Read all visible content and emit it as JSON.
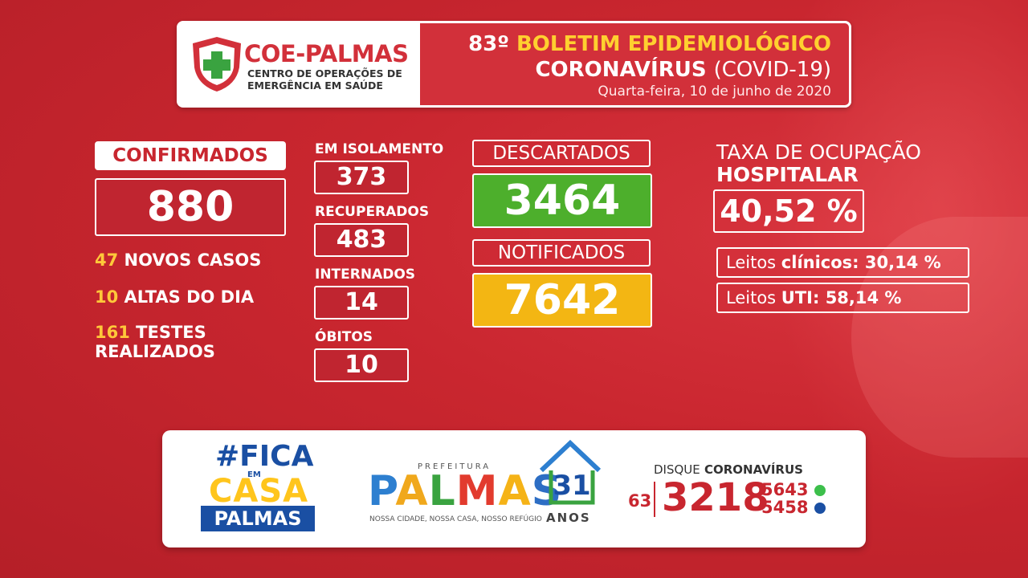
{
  "header": {
    "logo_title": "COE-PALMAS",
    "logo_sub1": "CENTRO DE OPERAÇÕES DE",
    "logo_sub2": "EMERGÊNCIA EM SAÚDE",
    "edition": "83º",
    "bulletin": "BOLETIM EPIDEMIOLÓGICO",
    "subject": "CORONAVÍRUS",
    "subject_paren": "(COVID-19)",
    "date": "Quarta-feira, 10 de junho de 2020"
  },
  "confirmed": {
    "label": "CONFIRMADOS",
    "value": "880",
    "new_cases_num": "47",
    "new_cases_label": "NOVOS CASOS",
    "discharges_num": "10",
    "discharges_label": "ALTAS DO DIA",
    "tests_num": "161",
    "tests_label1": "TESTES",
    "tests_label2": "REALIZADOS"
  },
  "middle": {
    "isolation_label": "EM ISOLAMENTO",
    "isolation_value": "373",
    "recovered_label": "RECUPERADOS",
    "recovered_value": "483",
    "hospitalized_label": "INTERNADOS",
    "hospitalized_value": "14",
    "deaths_label": "ÓBITOS",
    "deaths_value": "10"
  },
  "discarded": {
    "label": "DESCARTADOS",
    "value": "3464"
  },
  "notified": {
    "label": "NOTIFICADOS",
    "value": "7642"
  },
  "occupancy": {
    "title1": "TAXA DE OCUPAÇÃO",
    "title2": "HOSPITALAR",
    "value": "40,52 %",
    "clinic_label": "Leitos ",
    "clinic_bold": "clínicos: 30,14 %",
    "uti_label": "Leitos ",
    "uti_bold": "UTI: 58,14 %"
  },
  "footer": {
    "fica_hash": "#FICA",
    "fica_em": "EM",
    "fica_casa": "CASA",
    "fica_city": "PALMAS",
    "prefeitura": "PREFEITURA",
    "palmas_letters": [
      "P",
      "A",
      "L",
      "M",
      "A",
      "S"
    ],
    "tagline": "NOSSA CIDADE, NOSSA CASA, NOSSO REFÚGIO",
    "years": "31",
    "anos": "ANOS",
    "disque": "DISQUE",
    "disque_bold": "CORONAVÍRUS",
    "ddd": "63",
    "phone_main": "3218",
    "phone_a": "5643",
    "phone_b": "5458",
    "colors": {
      "red": "#c8262f",
      "blue": "#1a4fa3",
      "yellow": "#ffc51c",
      "whatsapp": "#3cbf4b"
    }
  }
}
